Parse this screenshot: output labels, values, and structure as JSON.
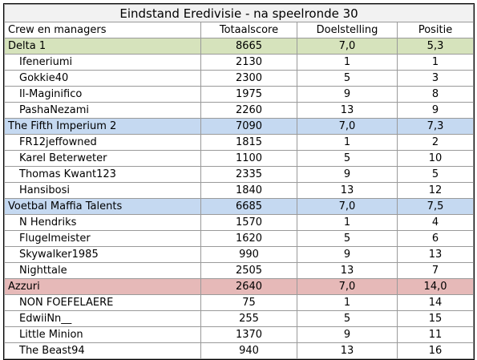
{
  "title": "Eindstand Eredivisie - na speelronde 30",
  "headers": [
    "Crew en managers",
    "Totaalscore",
    "Doelstelling",
    "Positie"
  ],
  "groups": [
    {
      "name": "Delta 1",
      "total": "8665",
      "goal": "7,0",
      "position": "5,3",
      "color": "#d6e3bc",
      "members": [
        {
          "name": "Ifeneriumi",
          "total": "2130",
          "goal": "1",
          "position": "1"
        },
        {
          "name": "Gokkie40",
          "total": "2300",
          "goal": "5",
          "position": "3"
        },
        {
          "name": "Il-Maginifico",
          "total": "1975",
          "goal": "9",
          "position": "8"
        },
        {
          "name": "PashaNezami",
          "total": "2260",
          "goal": "13",
          "position": "9"
        }
      ]
    },
    {
      "name": "The Fifth Imperium 2",
      "total": "7090",
      "goal": "7,0",
      "position": "7,3",
      "color": "#c5d9f1",
      "members": [
        {
          "name": "FR12jeffowned",
          "total": "1815",
          "goal": "1",
          "position": "2"
        },
        {
          "name": "Karel Beterweter",
          "total": "1100",
          "goal": "5",
          "position": "10"
        },
        {
          "name": "Thomas Kwant123",
          "total": "2335",
          "goal": "9",
          "position": "5"
        },
        {
          "name": "Hansibosi",
          "total": "1840",
          "goal": "13",
          "position": "12"
        }
      ]
    },
    {
      "name": "Voetbal Maffia Talents",
      "total": "6685",
      "goal": "7,0",
      "position": "7,5",
      "color": "#c5d9f1",
      "members": [
        {
          "name": "N Hendriks",
          "total": "1570",
          "goal": "1",
          "position": "4"
        },
        {
          "name": "Flugelmeister",
          "total": "1620",
          "goal": "5",
          "position": "6"
        },
        {
          "name": "Skywalker1985",
          "total": "990",
          "goal": "9",
          "position": "13"
        },
        {
          "name": "Nighttale",
          "total": "2505",
          "goal": "13",
          "position": "7"
        }
      ]
    },
    {
      "name": "Azzuri",
      "total": "2640",
      "goal": "7,0",
      "position": "14,0",
      "color": "#e6b9b8",
      "members": [
        {
          "name": "NON FOEFELAERE",
          "total": "75",
          "goal": "1",
          "position": "14"
        },
        {
          "name": "EdwiiNn__",
          "total": "255",
          "goal": "5",
          "position": "15"
        },
        {
          "name": "Little Minion",
          "total": "1370",
          "goal": "9",
          "position": "11"
        },
        {
          "name": "The Beast94",
          "total": "940",
          "goal": "13",
          "position": "16"
        }
      ]
    }
  ]
}
